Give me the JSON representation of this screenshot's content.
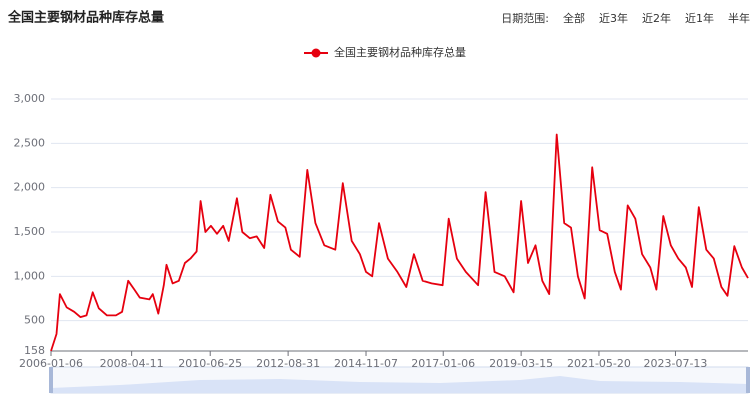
{
  "controls": {
    "label": "日期范围:",
    "options": [
      "全部",
      "近3年",
      "近2年",
      "近1年",
      "半年"
    ]
  },
  "chart_data": {
    "type": "line",
    "title": "全国主要钢材品种库存总量",
    "x": [
      "2006-01-06",
      "2006-03-03",
      "2006-04-07",
      "2006-06-16",
      "2006-09-01",
      "2006-11-03",
      "2007-01-05",
      "2007-03-09",
      "2007-05-11",
      "2007-08-03",
      "2007-11-02",
      "2008-01-04",
      "2008-03-07",
      "2008-05-09",
      "2008-07-04",
      "2008-10-10",
      "2008-11-14",
      "2009-01-09",
      "2009-03-06",
      "2009-04-03",
      "2009-06-05",
      "2009-08-07",
      "2009-10-09",
      "2009-12-04",
      "2010-02-05",
      "2010-03-19",
      "2010-05-07",
      "2010-07-02",
      "2010-09-03",
      "2010-11-05",
      "2010-12-31",
      "2011-03-25",
      "2011-05-20",
      "2011-08-05",
      "2011-10-14",
      "2011-12-30",
      "2012-03-02",
      "2012-05-18",
      "2012-08-03",
      "2012-09-28",
      "2012-12-28",
      "2013-03-15",
      "2013-06-07",
      "2013-09-06",
      "2013-12-27",
      "2014-03-14",
      "2014-06-13",
      "2014-09-05",
      "2014-11-07",
      "2015-01-09",
      "2015-03-20",
      "2015-06-19",
      "2015-09-25",
      "2015-12-25",
      "2016-03-11",
      "2016-06-10",
      "2016-09-09",
      "2016-12-30",
      "2017-03-03",
      "2017-05-26",
      "2017-08-25",
      "2017-12-29",
      "2018-03-16",
      "2018-06-15",
      "2018-09-28",
      "2018-12-28",
      "2019-03-15",
      "2019-05-24",
      "2019-08-09",
      "2019-10-18",
      "2019-12-27",
      "2020-03-13",
      "2020-05-29",
      "2020-08-07",
      "2020-10-16",
      "2020-12-25",
      "2021-03-12",
      "2021-05-28",
      "2021-08-13",
      "2021-10-29",
      "2021-12-31",
      "2022-03-11",
      "2022-05-27",
      "2022-08-05",
      "2022-10-28",
      "2022-12-30",
      "2023-03-10",
      "2023-05-26",
      "2023-08-11",
      "2023-10-27",
      "2023-12-29",
      "2024-03-08",
      "2024-05-24",
      "2024-08-09",
      "2024-10-25",
      "2024-12-27",
      "2025-03-07",
      "2025-05-23",
      "2025-07-25"
    ],
    "series": [
      {
        "name": "全国主要钢材品种库存总量",
        "color": "#e6000f",
        "values": [
          158,
          350,
          800,
          650,
          600,
          540,
          560,
          820,
          640,
          560,
          560,
          600,
          950,
          850,
          760,
          740,
          800,
          580,
          900,
          1130,
          920,
          950,
          1150,
          1200,
          1280,
          1850,
          1500,
          1570,
          1480,
          1570,
          1400,
          1880,
          1500,
          1430,
          1450,
          1320,
          1920,
          1620,
          1550,
          1300,
          1220,
          2200,
          1600,
          1350,
          1300,
          2050,
          1400,
          1250,
          1050,
          1000,
          1600,
          1200,
          1050,
          880,
          1250,
          950,
          920,
          900,
          1650,
          1200,
          1050,
          900,
          1950,
          1050,
          1000,
          820,
          1850,
          1150,
          1350,
          950,
          800,
          2600,
          1600,
          1550,
          1000,
          750,
          2230,
          1520,
          1480,
          1050,
          850,
          1800,
          1650,
          1250,
          1100,
          850,
          1680,
          1350,
          1200,
          1100,
          880,
          1780,
          1300,
          1200,
          880,
          780,
          1340,
          1100,
          980
        ]
      }
    ],
    "xlim": [
      "2006-01-06",
      "2025-07-25"
    ],
    "xticks": [
      "2006-01-06",
      "2008-04-11",
      "2010-06-25",
      "2012-08-31",
      "2014-11-07",
      "2017-01-06",
      "2019-03-15",
      "2021-05-20",
      "2023-07-13"
    ],
    "ylim": [
      158,
      3000
    ],
    "yticks": [
      158,
      500,
      {
        "value": 1000,
        "label": "1,000"
      },
      {
        "value": 1500,
        "label": "1,500"
      },
      {
        "value": 2000,
        "label": "2,000"
      },
      {
        "value": 2500,
        "label": "2,500"
      },
      {
        "value": 3000,
        "label": "3,000"
      }
    ],
    "grid": true,
    "legend": "top"
  }
}
